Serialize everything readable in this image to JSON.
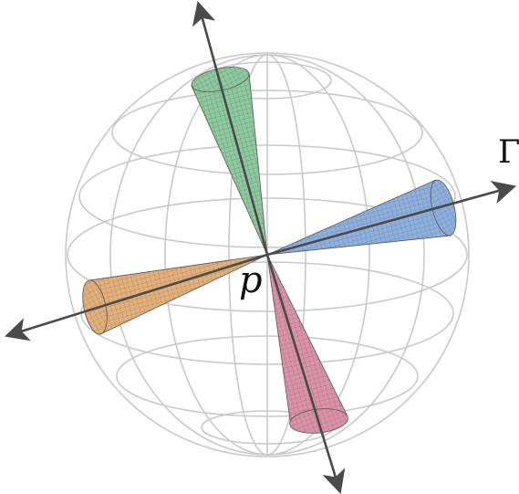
{
  "labels": {
    "gamma": "Γ",
    "point": "p"
  },
  "colors": {
    "sphere_grid": "#c9c9c9",
    "axis": "#4a4a4a",
    "cone_green": "#8fc9a0",
    "cone_blue": "#8fb0dc",
    "cone_orange": "#e2b07c",
    "cone_pink": "#d993a8",
    "cone_mesh": "#555555"
  },
  "cones": [
    {
      "name": "green",
      "color_key": "cone_green"
    },
    {
      "name": "blue",
      "color_key": "cone_blue"
    },
    {
      "name": "orange",
      "color_key": "cone_orange"
    },
    {
      "name": "pink",
      "color_key": "cone_pink"
    }
  ]
}
